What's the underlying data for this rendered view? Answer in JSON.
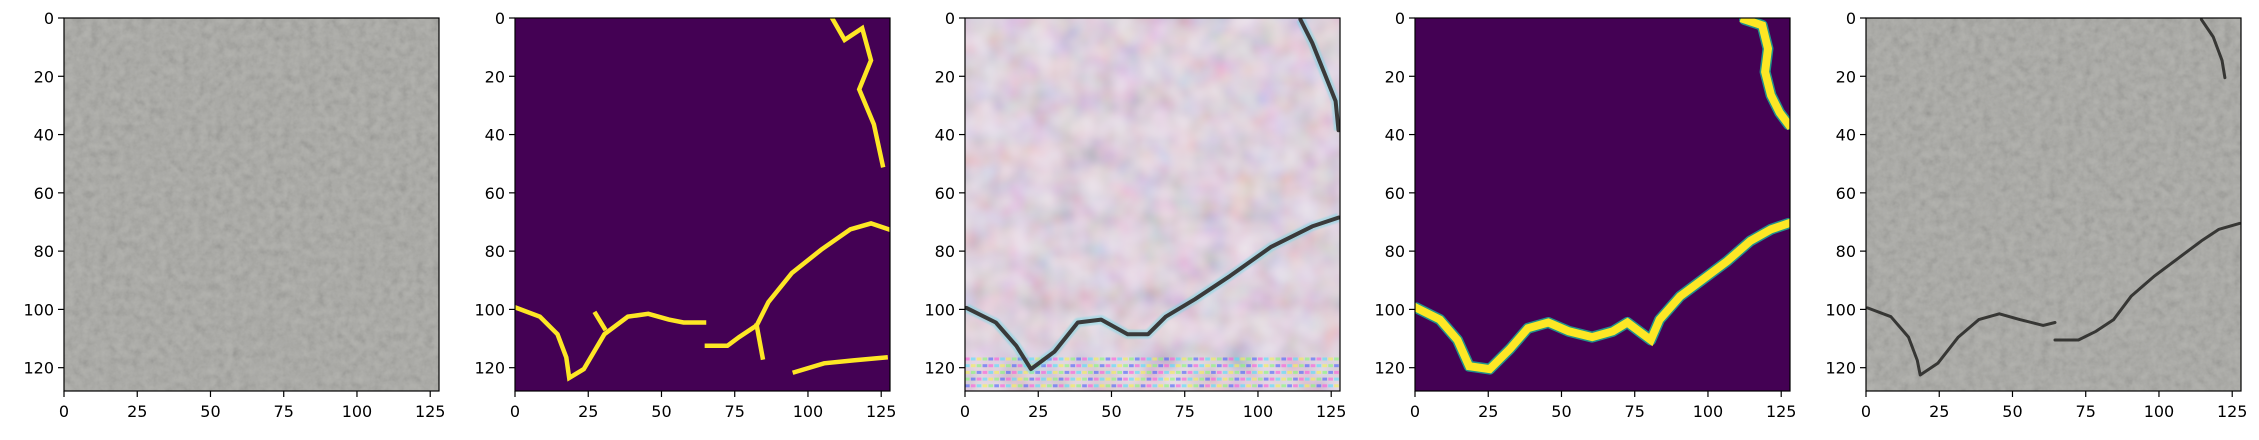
{
  "chart_data": [
    {
      "type": "image",
      "content": "concrete surface photo (input)",
      "xlim": [
        0,
        127
      ],
      "ylim": [
        127,
        0
      ],
      "xticks": [
        "0",
        "25",
        "50",
        "75",
        "100",
        "125"
      ],
      "yticks": [
        "0",
        "20",
        "40",
        "60",
        "80",
        "100",
        "120"
      ],
      "colors": {
        "base": "#b4b4b0",
        "dark": "#7a7a78"
      }
    },
    {
      "type": "heatmap",
      "content": "ground-truth crack mask",
      "colormap": "viridis",
      "colors": {
        "background": "#440154",
        "foreground": "#fde725"
      },
      "xlim": [
        0,
        127
      ],
      "ylim": [
        127,
        0
      ],
      "xticks": [
        "0",
        "25",
        "50",
        "75",
        "100",
        "125"
      ],
      "yticks": [
        "0",
        "20",
        "40",
        "60",
        "80",
        "100",
        "120"
      ],
      "crack_paths": [
        [
          [
            0,
            99
          ],
          [
            8,
            102
          ],
          [
            14,
            108
          ],
          [
            17,
            116
          ],
          [
            18,
            123
          ],
          [
            23,
            120
          ],
          [
            30,
            108
          ],
          [
            38,
            102
          ],
          [
            45,
            101
          ],
          [
            52,
            103
          ],
          [
            57,
            104
          ],
          [
            64,
            104
          ]
        ],
        [
          [
            65,
            112
          ],
          [
            72,
            112
          ],
          [
            76,
            109
          ],
          [
            82,
            105
          ],
          [
            86,
            97
          ],
          [
            94,
            87
          ],
          [
            104,
            79
          ],
          [
            114,
            72
          ],
          [
            121,
            70
          ],
          [
            127,
            72
          ]
        ],
        [
          [
            95,
            121
          ],
          [
            105,
            118
          ],
          [
            115,
            117
          ],
          [
            126,
            116
          ]
        ],
        [
          [
            108,
            0
          ],
          [
            112,
            7
          ],
          [
            118,
            3
          ],
          [
            121,
            14
          ],
          [
            117,
            24
          ],
          [
            122,
            36
          ],
          [
            125,
            50
          ]
        ],
        [
          [
            82,
            105
          ],
          [
            84,
            116
          ]
        ],
        [
          [
            27,
            101
          ],
          [
            30,
            106
          ]
        ]
      ]
    },
    {
      "type": "image",
      "content": "generated crack image",
      "colors": {
        "base": "#ece6ec",
        "tint": "#c9a7c4",
        "line": "#3a3a3a"
      },
      "xlim": [
        0,
        127
      ],
      "ylim": [
        127,
        0
      ],
      "xticks": [
        "0",
        "25",
        "50",
        "75",
        "100",
        "125"
      ],
      "yticks": [
        "0",
        "20",
        "40",
        "60",
        "80",
        "100",
        "120"
      ],
      "crack_paths": [
        [
          [
            0,
            99
          ],
          [
            10,
            104
          ],
          [
            17,
            112
          ],
          [
            22,
            120
          ],
          [
            30,
            114
          ],
          [
            38,
            104
          ],
          [
            46,
            103
          ],
          [
            55,
            108
          ],
          [
            62,
            108
          ],
          [
            68,
            102
          ],
          [
            78,
            96
          ],
          [
            90,
            88
          ],
          [
            104,
            78
          ],
          [
            118,
            71
          ],
          [
            127,
            68
          ]
        ],
        [
          [
            114,
            0
          ],
          [
            118,
            8
          ],
          [
            122,
            18
          ],
          [
            126,
            28
          ],
          [
            127,
            38
          ]
        ]
      ]
    },
    {
      "type": "heatmap",
      "content": "predicted crack mask",
      "colormap": "viridis",
      "colors": {
        "background": "#440154",
        "foreground": "#fde725",
        "edge": "#21918c"
      },
      "xlim": [
        0,
        127
      ],
      "ylim": [
        127,
        0
      ],
      "xticks": [
        "0",
        "25",
        "50",
        "75",
        "100",
        "125"
      ],
      "yticks": [
        "0",
        "20",
        "40",
        "60",
        "80",
        "100",
        "120"
      ],
      "crack_paths": [
        [
          [
            0,
            99
          ],
          [
            8,
            103
          ],
          [
            14,
            110
          ],
          [
            18,
            119
          ],
          [
            25,
            120
          ],
          [
            32,
            113
          ],
          [
            38,
            106
          ],
          [
            45,
            104
          ],
          [
            52,
            107
          ],
          [
            60,
            109
          ],
          [
            67,
            107
          ],
          [
            72,
            104
          ],
          [
            76,
            107
          ],
          [
            80,
            110
          ],
          [
            83,
            103
          ],
          [
            90,
            95
          ],
          [
            98,
            89
          ],
          [
            106,
            83
          ],
          [
            114,
            76
          ],
          [
            121,
            72
          ],
          [
            127,
            70
          ]
        ],
        [
          [
            112,
            0
          ],
          [
            118,
            2
          ],
          [
            120,
            10
          ],
          [
            119,
            18
          ],
          [
            121,
            26
          ],
          [
            124,
            32
          ],
          [
            127,
            36
          ]
        ]
      ]
    },
    {
      "type": "image",
      "content": "concrete surface with overlaid crack",
      "colors": {
        "base": "#b4b4b0",
        "dark": "#7a7a78",
        "crack": "#2a2a28"
      },
      "xlim": [
        0,
        127
      ],
      "ylim": [
        127,
        0
      ],
      "xticks": [
        "0",
        "25",
        "50",
        "75",
        "100",
        "125"
      ],
      "yticks": [
        "0",
        "20",
        "40",
        "60",
        "80",
        "100",
        "120"
      ],
      "crack_paths": [
        [
          [
            0,
            99
          ],
          [
            8,
            102
          ],
          [
            14,
            109
          ],
          [
            17,
            117
          ],
          [
            18,
            122
          ],
          [
            24,
            118
          ],
          [
            31,
            109
          ],
          [
            38,
            103
          ],
          [
            45,
            101
          ],
          [
            52,
            103
          ],
          [
            60,
            105
          ],
          [
            64,
            104
          ]
        ],
        [
          [
            64,
            110
          ],
          [
            72,
            110
          ],
          [
            78,
            107
          ],
          [
            84,
            103
          ],
          [
            90,
            95
          ],
          [
            98,
            88
          ],
          [
            106,
            82
          ],
          [
            114,
            76
          ],
          [
            120,
            72
          ],
          [
            127,
            70
          ]
        ],
        [
          [
            114,
            0
          ],
          [
            118,
            6
          ],
          [
            121,
            14
          ],
          [
            122,
            20
          ]
        ]
      ]
    }
  ]
}
